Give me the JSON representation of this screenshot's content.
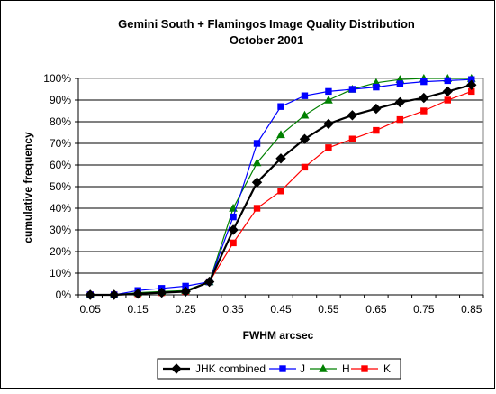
{
  "chart_data": {
    "type": "line",
    "title": "Gemini South + Flamingos Image Quality Distribution",
    "subtitle": "October 2001",
    "xlabel": "FWHM arcsec",
    "ylabel": "cumulative frequency",
    "x": [
      0.05,
      0.1,
      0.15,
      0.2,
      0.25,
      0.3,
      0.35,
      0.4,
      0.45,
      0.5,
      0.55,
      0.6,
      0.65,
      0.7,
      0.75,
      0.8,
      0.85
    ],
    "x_tick_labels": [
      "0.05",
      "0.15",
      "0.25",
      "0.35",
      "0.45",
      "0.55",
      "0.65",
      "0.75",
      "0.85"
    ],
    "y_tick_labels": [
      "0%",
      "10%",
      "20%",
      "30%",
      "40%",
      "50%",
      "60%",
      "70%",
      "80%",
      "90%",
      "100%"
    ],
    "ylim": [
      0,
      100
    ],
    "grid": "horizontal",
    "legend_position": "bottom",
    "series": [
      {
        "name": "JHK combined",
        "color": "#000000",
        "marker": "diamond",
        "values": [
          0,
          0,
          0.5,
          1,
          1.5,
          6,
          30,
          52,
          63,
          72,
          79,
          83,
          86,
          89,
          91,
          94,
          97
        ]
      },
      {
        "name": "J",
        "color": "#0000ff",
        "marker": "square",
        "values": [
          0,
          0,
          2,
          3,
          4,
          6,
          36,
          70,
          87,
          92,
          94,
          95,
          96,
          97.5,
          98.5,
          99,
          99.5
        ]
      },
      {
        "name": "H",
        "color": "#008000",
        "marker": "triangle",
        "values": [
          0,
          0,
          1,
          1.5,
          2,
          6,
          40,
          61,
          74,
          83,
          90,
          95,
          98,
          99.5,
          100,
          100,
          100
        ]
      },
      {
        "name": "K",
        "color": "#ff0000",
        "marker": "square",
        "values": [
          0,
          0,
          0.5,
          1,
          1.5,
          6,
          24,
          40,
          48,
          59,
          68,
          72,
          76,
          81,
          85,
          90,
          94
        ]
      }
    ]
  }
}
